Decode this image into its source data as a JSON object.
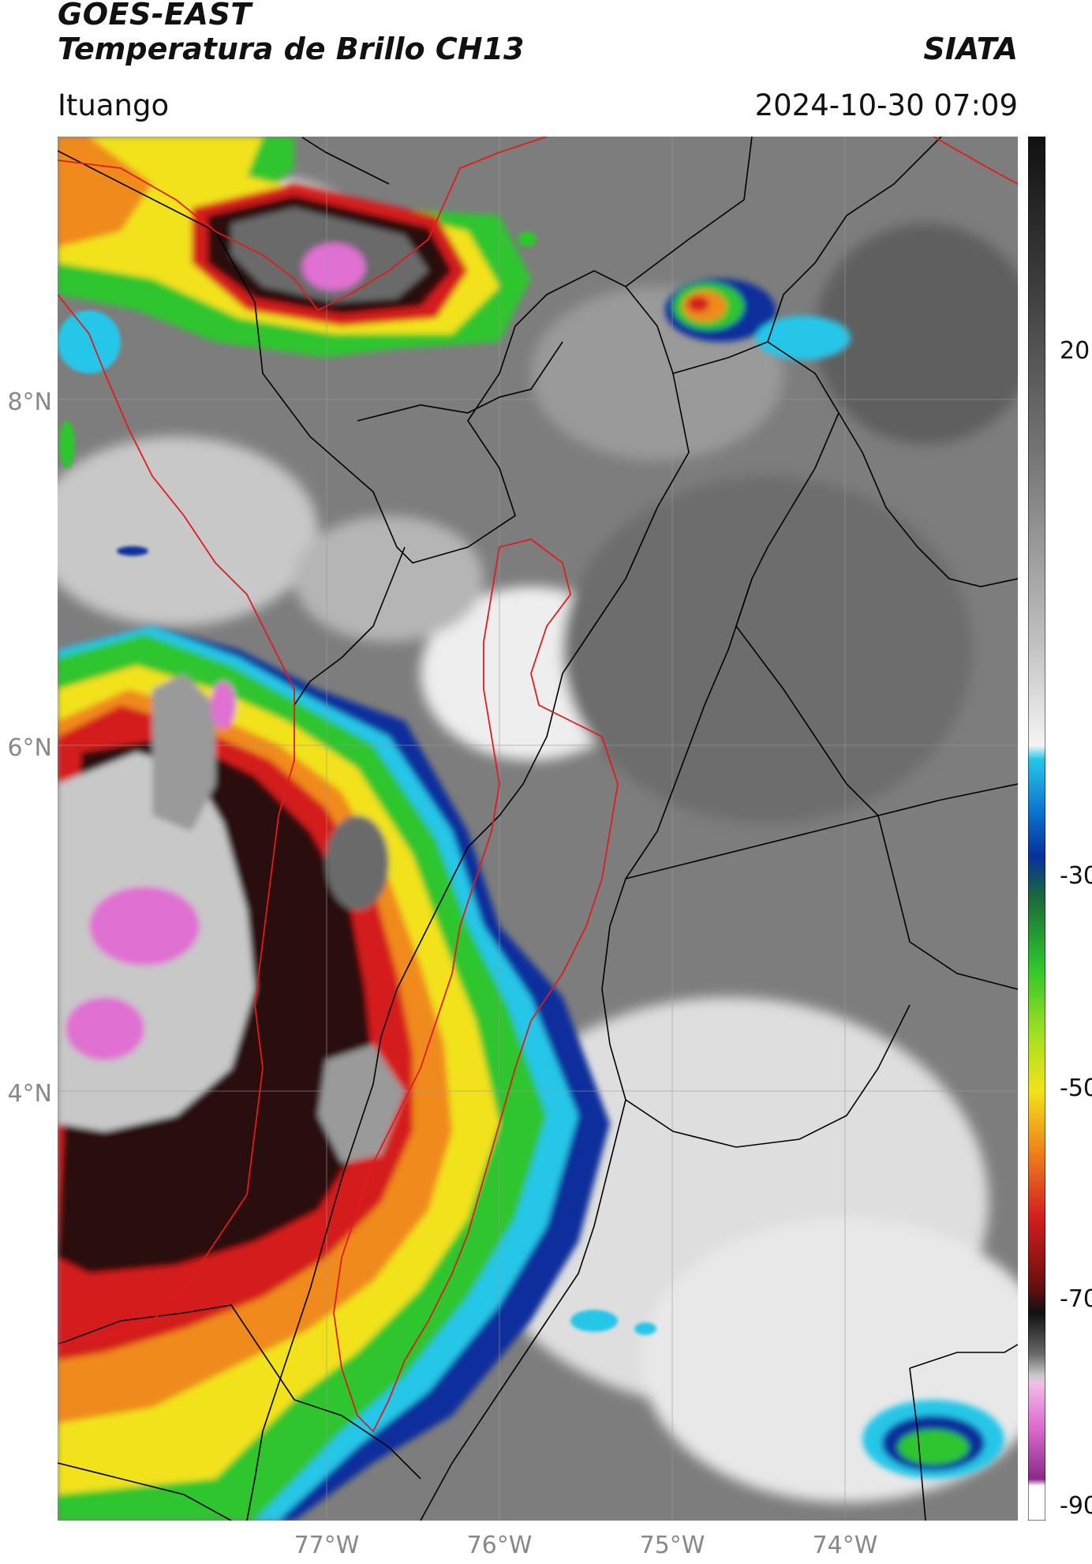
{
  "header": {
    "satellite": "GOES-EAST",
    "product": "Temperatura de Brillo CH13",
    "agency": "SIATA",
    "location": "Ituango",
    "timestamp": "2024-10-30 07:09"
  },
  "axes": {
    "lat_ticks": [
      "8°N",
      "6°N",
      "4°N"
    ],
    "lon_ticks": [
      "77°W",
      "76°W",
      "75°W",
      "74°W"
    ]
  },
  "colorbar": {
    "ticks": [
      "20",
      "-30",
      "-50",
      "-70",
      "-90"
    ],
    "colors": {
      "cold_top": "#111111",
      "gray_warm": "#7a7a7a",
      "white": "#f4f4f4",
      "cyan": "#26c6e8",
      "blue": "#0a2f9c",
      "green": "#2ec52e",
      "yellow": "#f2e21a",
      "orange": "#f08a1c",
      "red": "#d41f1f",
      "magenta": "#e070d2",
      "purple": "#8a2a8a"
    }
  },
  "map": {
    "border_color": "#000000",
    "highlight_region_color": "#e11b1b"
  }
}
